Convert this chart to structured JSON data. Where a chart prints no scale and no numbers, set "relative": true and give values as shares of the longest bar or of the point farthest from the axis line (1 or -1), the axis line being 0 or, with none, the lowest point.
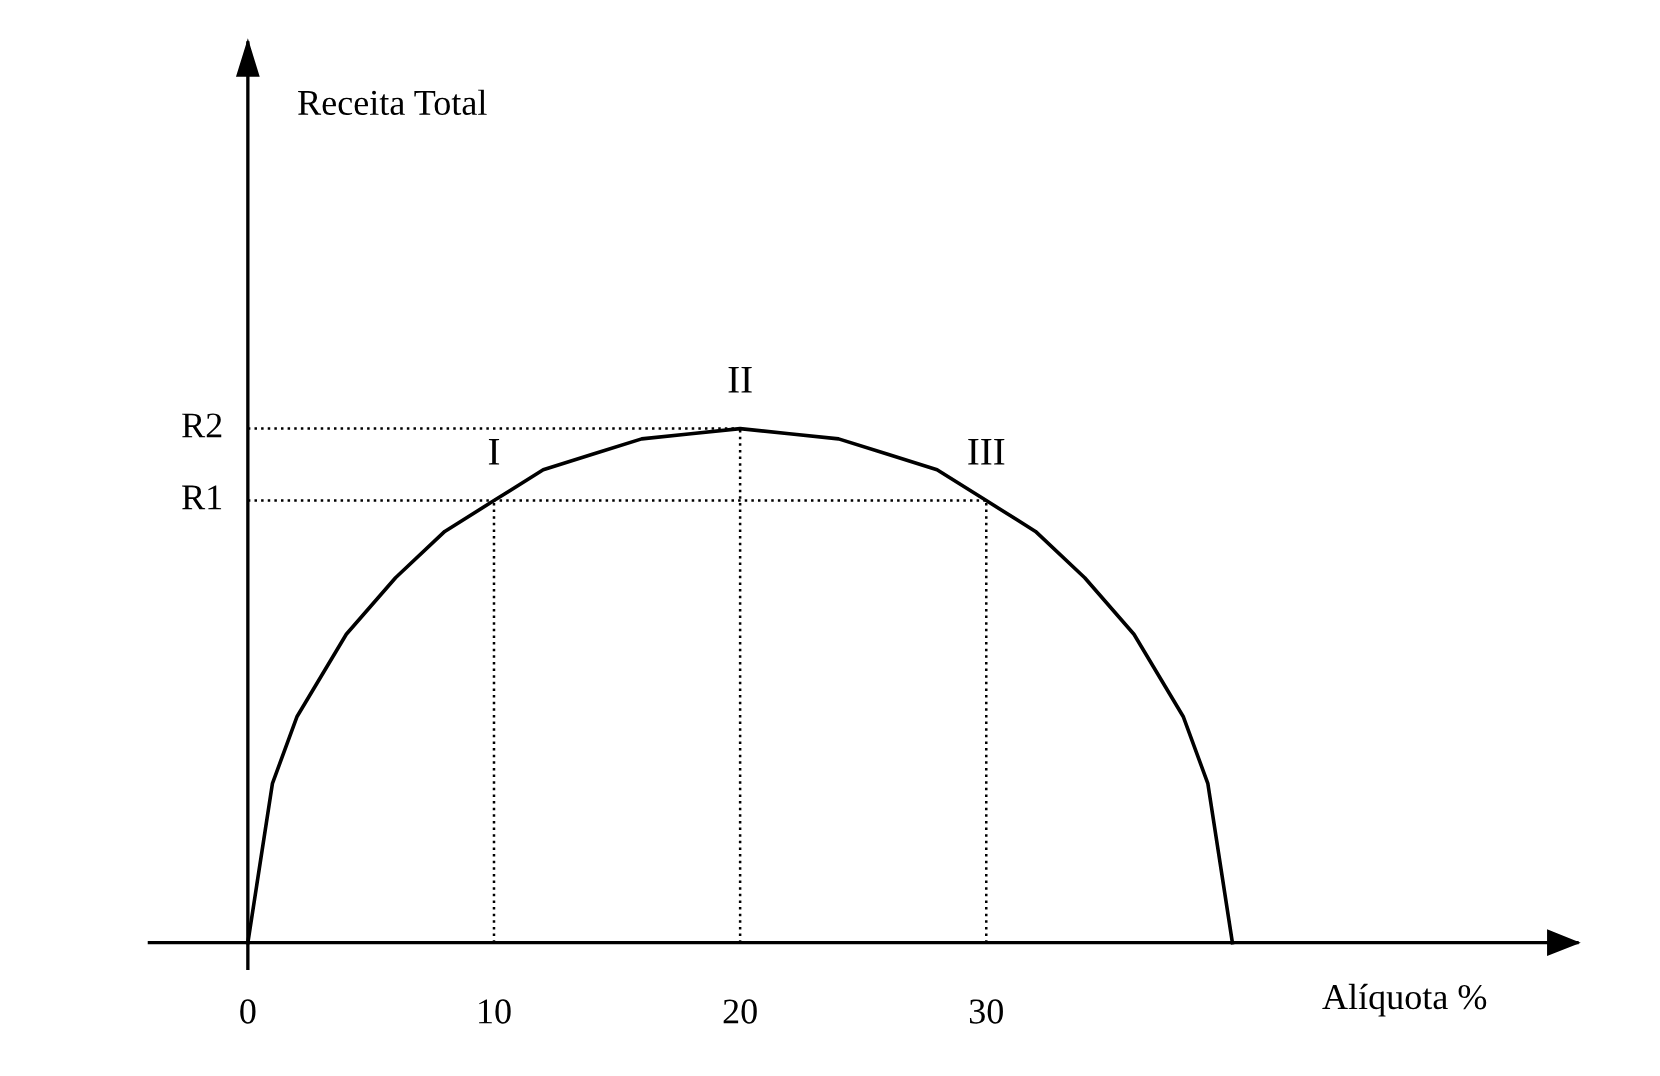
{
  "chart_data": {
    "type": "line",
    "relative": true,
    "xlabel": "Alíquota %",
    "x": [
      0,
      1,
      2,
      4,
      6,
      8,
      10,
      12,
      14,
      16,
      18,
      20,
      22,
      24,
      26,
      28,
      30,
      32,
      34,
      36,
      38,
      39,
      40
    ],
    "series": [
      {
        "color": "#000000",
        "values": [
          0,
          0.31,
          0.44,
          0.6,
          0.71,
          0.8,
          0.86,
          0.92,
          0.95,
          0.98,
          0.99,
          1,
          0.99,
          0.98,
          0.95,
          0.92,
          0.86,
          0.8,
          0.71,
          0.6,
          0.44,
          0.31,
          0
        ]
      }
    ],
    "xlim": [
      -4,
      54
    ],
    "xticks": [
      0,
      10,
      20,
      30
    ],
    "ref_lines": [
      {
        "axis": "y",
        "value": 1,
        "label": "R2",
        "line_style": "dotted",
        "color": "#000000"
      },
      {
        "axis": "y",
        "value": 0.86,
        "label": "R1",
        "line_style": "dotted",
        "color": "#000000"
      },
      {
        "axis": "x",
        "value": 10,
        "line_style": "dotted",
        "color": "#000000"
      },
      {
        "axis": "x",
        "value": 20,
        "line_style": "dotted",
        "color": "#000000"
      },
      {
        "axis": "x",
        "value": 30,
        "line_style": "dotted",
        "color": "#000000"
      }
    ],
    "annotations": [
      "Receita Total",
      {
        "text": "I",
        "x": 10,
        "y": 0.86
      },
      {
        "text": "II",
        "x": 20,
        "y": 1
      },
      {
        "text": "III",
        "x": 30,
        "y": 0.86
      }
    ],
    "grid": false,
    "legend": false,
    "marker": "none",
    "line_style": "solid"
  }
}
